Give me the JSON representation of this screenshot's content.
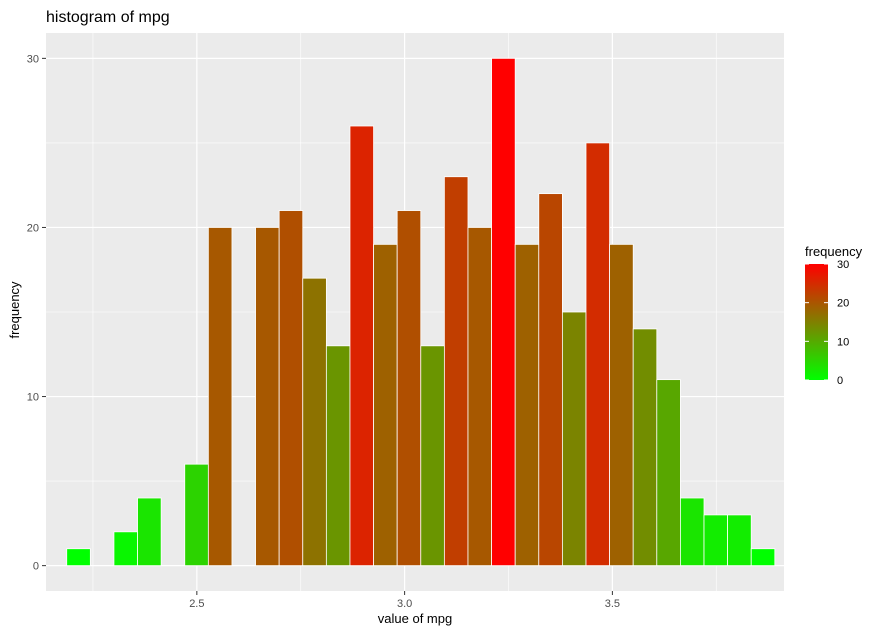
{
  "chart_data": {
    "type": "bar",
    "title": "histogram of mpg",
    "xlabel": "value of mpg",
    "ylabel": "frequency",
    "xlim": [
      2.137,
      3.913
    ],
    "ylim": [
      -1.5,
      31.5
    ],
    "x_ticks": [
      2.5,
      3.0,
      3.5
    ],
    "x_tick_labels": [
      "2.5",
      "3.0",
      "3.5"
    ],
    "y_ticks": [
      0,
      10,
      20,
      30
    ],
    "y_tick_labels": [
      "0",
      "10",
      "20",
      "30"
    ],
    "grid": true,
    "bin_width": 0.0568,
    "x": [
      2.2153,
      2.3289,
      2.3857,
      2.4993,
      2.5561,
      2.6697,
      2.7265,
      2.7833,
      2.8401,
      2.8969,
      2.9537,
      3.0105,
      3.0673,
      3.1241,
      3.1809,
      3.2377,
      3.2945,
      3.3513,
      3.4081,
      3.4649,
      3.5217,
      3.5785,
      3.6353,
      3.6921,
      3.7489,
      3.8057,
      3.8625
    ],
    "values": [
      1,
      2,
      4,
      6,
      20,
      20,
      21,
      17,
      13,
      26,
      19,
      21,
      13,
      23,
      20,
      30,
      19,
      22,
      15,
      25,
      19,
      14,
      11,
      4,
      3,
      3,
      1
    ],
    "legend": {
      "title": "frequency",
      "position": "right",
      "ticks": [
        0,
        10,
        20,
        30
      ],
      "tick_labels": [
        "0",
        "10",
        "20",
        "30"
      ],
      "low_color": "#00ff00",
      "high_color": "#ff0000"
    }
  }
}
